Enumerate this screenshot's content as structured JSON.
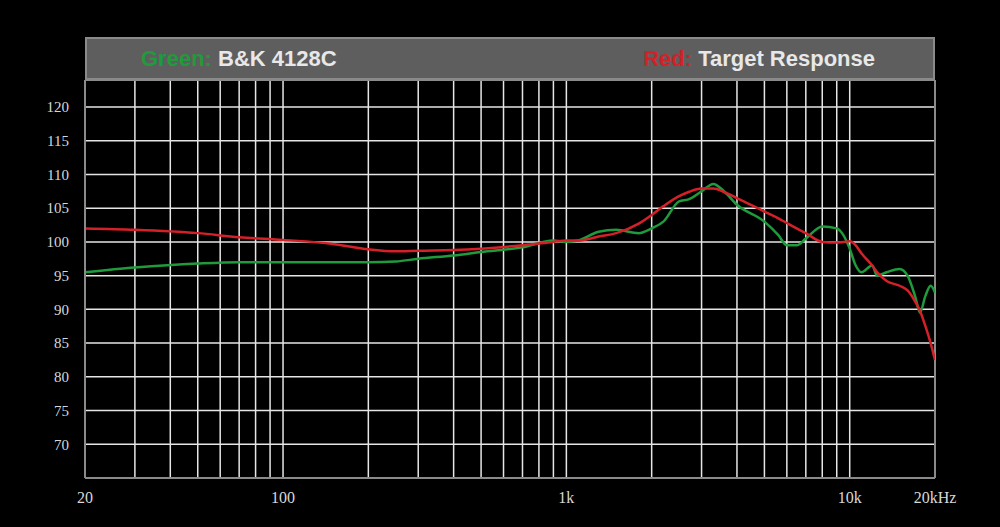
{
  "chart_data": {
    "type": "line",
    "legend": "top",
    "grid": true,
    "log": "x",
    "x": [
      20,
      30,
      50,
      70,
      100,
      150,
      200,
      250,
      300,
      400,
      500,
      700,
      900,
      1000,
      1100,
      1300,
      1500,
      1800,
      2000,
      2200,
      2500,
      2700,
      3000,
      3300,
      3600,
      4000,
      5000,
      5600,
      6000,
      6500,
      7000,
      8000,
      9000,
      9500,
      10000,
      10500,
      11000,
      12000,
      12500,
      13500,
      15000,
      16000,
      17000,
      17700,
      18500,
      19300,
      20000
    ],
    "xlim": [
      20,
      20000
    ],
    "xticks": [
      20,
      100,
      {
        "value": 1000,
        "label": "1k"
      },
      {
        "value": 10000,
        "label": "10k"
      },
      {
        "value": 20000,
        "label": "20kHz"
      }
    ],
    "ylim": [
      65,
      124
    ],
    "yticks": [
      70,
      75,
      80,
      85,
      90,
      95,
      100,
      105,
      110,
      115,
      120
    ],
    "series": [
      {
        "name": "B&K 4128C",
        "legend_prefix": "Green:",
        "color": "#1f9a3c",
        "values": [
          95.5,
          96.2,
          96.8,
          97,
          97,
          97,
          97,
          97.1,
          97.5,
          98,
          98.5,
          99.2,
          100.2,
          100,
          100.2,
          101.5,
          101.8,
          101.3,
          102,
          103,
          106,
          106.3,
          107.5,
          108.6,
          107.5,
          105.5,
          103,
          101,
          99.5,
          99.5,
          100.5,
          102.3,
          102,
          101,
          99,
          96.5,
          95.5,
          96.5,
          95,
          95.5,
          96,
          95,
          92,
          89.5,
          92,
          93.5,
          92.5
        ]
      },
      {
        "name": "Target Response",
        "legend_prefix": "Red:",
        "color": "#d42028",
        "values": [
          102,
          101.8,
          101.3,
          100.7,
          100.3,
          99.7,
          98.9,
          98.6,
          98.7,
          98.8,
          99,
          99.5,
          100,
          100.2,
          100.2,
          100.8,
          101.3,
          102.7,
          104,
          105.3,
          106.8,
          107.4,
          107.9,
          107.9,
          107.4,
          106.5,
          104.5,
          103.5,
          102.8,
          102,
          101.3,
          100,
          99.9,
          100,
          100.1,
          99.5,
          98.3,
          96.5,
          95.5,
          94.2,
          93.5,
          92.8,
          91.2,
          89.8,
          87.5,
          85,
          82.5
        ]
      }
    ]
  }
}
